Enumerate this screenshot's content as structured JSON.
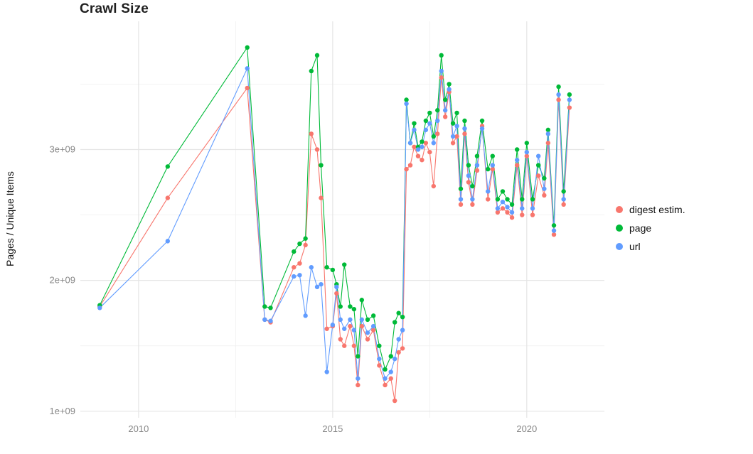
{
  "chart_data": {
    "type": "line",
    "title": "Crawl Size",
    "ylabel": "Pages / Unique Items",
    "xlabel": "",
    "y_value_unit": "1e9",
    "x_domain": [
      2008.5,
      2022
    ],
    "y_domain": [
      0.95,
      3.98
    ],
    "grid": true,
    "legend_position": "right",
    "x_ticks": [
      {
        "value": 2010,
        "label": "2010"
      },
      {
        "value": 2015,
        "label": "2015"
      },
      {
        "value": 2020,
        "label": "2020"
      }
    ],
    "y_ticks": [
      {
        "value": 1,
        "label": "1e+09"
      },
      {
        "value": 2,
        "label": "2e+09"
      },
      {
        "value": 3,
        "label": "3e+09"
      }
    ],
    "x_minor": [
      2012.5,
      2017.5
    ],
    "y_minor": [
      1.5,
      2.5,
      3.5
    ],
    "x": [
      2009.0,
      2010.75,
      2012.8,
      2013.25,
      2013.4,
      2014.0,
      2014.15,
      2014.3,
      2014.45,
      2014.6,
      2014.7,
      2014.85,
      2015.0,
      2015.1,
      2015.2,
      2015.3,
      2015.45,
      2015.55,
      2015.65,
      2015.75,
      2015.9,
      2016.05,
      2016.2,
      2016.35,
      2016.5,
      2016.6,
      2016.7,
      2016.8,
      2016.9,
      2017.0,
      2017.1,
      2017.2,
      2017.3,
      2017.4,
      2017.5,
      2017.6,
      2017.7,
      2017.8,
      2017.9,
      2018.0,
      2018.1,
      2018.2,
      2018.3,
      2018.4,
      2018.5,
      2018.6,
      2018.72,
      2018.85,
      2019.0,
      2019.12,
      2019.25,
      2019.38,
      2019.5,
      2019.62,
      2019.75,
      2019.88,
      2020.0,
      2020.15,
      2020.3,
      2020.45,
      2020.55,
      2020.7,
      2020.82,
      2020.95,
      2021.1
    ],
    "series": [
      {
        "name": "digest estim.",
        "color": "#F8766D",
        "values": [
          1.8,
          2.63,
          3.47,
          1.7,
          1.68,
          2.1,
          2.13,
          2.27,
          3.12,
          3.0,
          2.63,
          1.63,
          1.65,
          1.9,
          1.55,
          1.5,
          1.65,
          1.5,
          1.2,
          1.65,
          1.55,
          1.62,
          1.35,
          1.2,
          1.25,
          1.08,
          1.45,
          1.48,
          2.85,
          2.88,
          3.02,
          2.95,
          2.92,
          3.05,
          2.98,
          2.72,
          3.12,
          3.55,
          3.25,
          3.44,
          3.05,
          3.1,
          2.58,
          3.12,
          2.75,
          2.58,
          2.84,
          3.18,
          2.62,
          2.85,
          2.52,
          2.55,
          2.52,
          2.48,
          2.88,
          2.5,
          2.95,
          2.5,
          2.8,
          2.65,
          3.05,
          2.35,
          3.38,
          2.58,
          3.32
        ]
      },
      {
        "name": "page",
        "color": "#00BA38",
        "values": [
          1.81,
          2.87,
          3.78,
          1.8,
          1.79,
          2.22,
          2.28,
          2.32,
          3.6,
          3.72,
          2.88,
          2.1,
          2.08,
          1.97,
          1.8,
          2.12,
          1.8,
          1.78,
          1.42,
          1.85,
          1.7,
          1.73,
          1.5,
          1.32,
          1.42,
          1.68,
          1.75,
          1.72,
          3.38,
          3.05,
          3.2,
          3.02,
          3.06,
          3.22,
          3.28,
          3.1,
          3.3,
          3.72,
          3.38,
          3.5,
          3.2,
          3.28,
          2.7,
          3.22,
          2.88,
          2.72,
          2.95,
          3.22,
          2.85,
          2.95,
          2.62,
          2.68,
          2.62,
          2.58,
          3.0,
          2.62,
          3.05,
          2.62,
          2.88,
          2.78,
          3.15,
          2.42,
          3.48,
          2.68,
          3.42
        ]
      },
      {
        "name": "url",
        "color": "#619CFF",
        "values": [
          1.79,
          2.3,
          3.62,
          1.7,
          1.69,
          2.03,
          2.04,
          1.73,
          2.1,
          1.95,
          1.97,
          1.3,
          1.66,
          1.95,
          1.7,
          1.63,
          1.7,
          1.62,
          1.25,
          1.7,
          1.6,
          1.65,
          1.4,
          1.25,
          1.3,
          1.4,
          1.55,
          1.62,
          3.35,
          3.05,
          3.15,
          3.0,
          3.02,
          3.15,
          3.2,
          3.05,
          3.22,
          3.6,
          3.3,
          3.46,
          3.1,
          3.18,
          2.62,
          3.16,
          2.8,
          2.62,
          2.88,
          3.16,
          2.68,
          2.88,
          2.55,
          2.6,
          2.56,
          2.52,
          2.92,
          2.55,
          2.98,
          2.55,
          2.95,
          2.7,
          3.12,
          2.38,
          3.42,
          2.62,
          3.38
        ]
      }
    ]
  }
}
